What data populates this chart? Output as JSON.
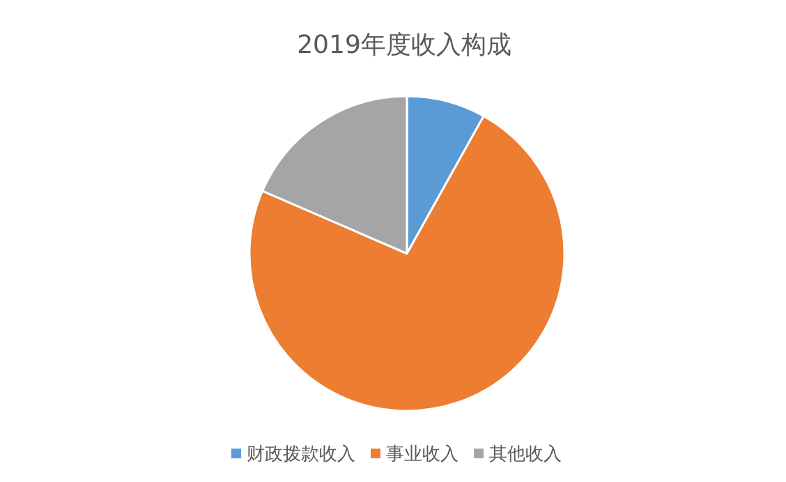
{
  "chart_data": {
    "type": "pie",
    "title": "2019年度收入构成",
    "categories": [
      "财政拨款收入",
      "事业收入",
      "其他收入"
    ],
    "values": [
      8.1,
      73.4,
      18.5
    ],
    "colors": [
      "#5b9bd5",
      "#ed7d31",
      "#a5a5a5"
    ],
    "legend": "bottom"
  }
}
